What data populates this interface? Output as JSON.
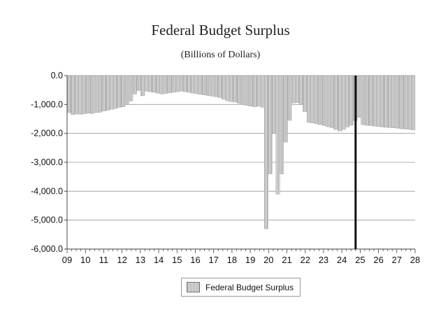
{
  "chart_data": {
    "type": "bar",
    "title": "Federal Budget Surplus",
    "subtitle": "(Billions of Dollars)",
    "ylabel": "",
    "xlabel": "",
    "ylim": [
      -6000,
      0
    ],
    "y_ticks": [
      0,
      -1000,
      -2000,
      -3000,
      -4000,
      -5000,
      -6000
    ],
    "y_tick_labels": [
      "0.0",
      "-1,000.0",
      "-2,000.0",
      "-3,000.0",
      "-4,000.0",
      "-5,000.0",
      "-6,000.0"
    ],
    "x_tick_labels": [
      "09",
      "10",
      "11",
      "12",
      "13",
      "14",
      "15",
      "16",
      "17",
      "18",
      "19",
      "20",
      "21",
      "22",
      "23",
      "24",
      "25",
      "26",
      "27",
      "28"
    ],
    "x_start_year": 2009,
    "x_end_year": 2028,
    "frequency": "quarterly",
    "forecast_marker": 2024.75,
    "legend": [
      "Federal Budget Surplus"
    ],
    "series": [
      {
        "name": "Federal Budget Surplus",
        "values": [
          -1280,
          -1350,
          -1330,
          -1340,
          -1320,
          -1300,
          -1310,
          -1280,
          -1270,
          -1230,
          -1200,
          -1170,
          -1140,
          -1100,
          -1080,
          -1000,
          -880,
          -640,
          -520,
          -700,
          -540,
          -560,
          -580,
          -610,
          -640,
          -620,
          -600,
          -580,
          -560,
          -540,
          -560,
          -580,
          -610,
          -630,
          -650,
          -670,
          -690,
          -710,
          -730,
          -760,
          -820,
          -880,
          -900,
          -920,
          -960,
          -1000,
          -1030,
          -1060,
          -1080,
          -1060,
          -1100,
          -5300,
          -3400,
          -2000,
          -4100,
          -3400,
          -2300,
          -1550,
          -950,
          -940,
          -980,
          -1250,
          -1620,
          -1640,
          -1670,
          -1700,
          -1730,
          -1770,
          -1800,
          -1870,
          -1920,
          -1870,
          -1780,
          -1720,
          -1560,
          -1450,
          -1700,
          -1720,
          -1730,
          -1750,
          -1760,
          -1780,
          -1790,
          -1800,
          -1810,
          -1820,
          -1840,
          -1850,
          -1860,
          -1880
        ]
      }
    ]
  }
}
